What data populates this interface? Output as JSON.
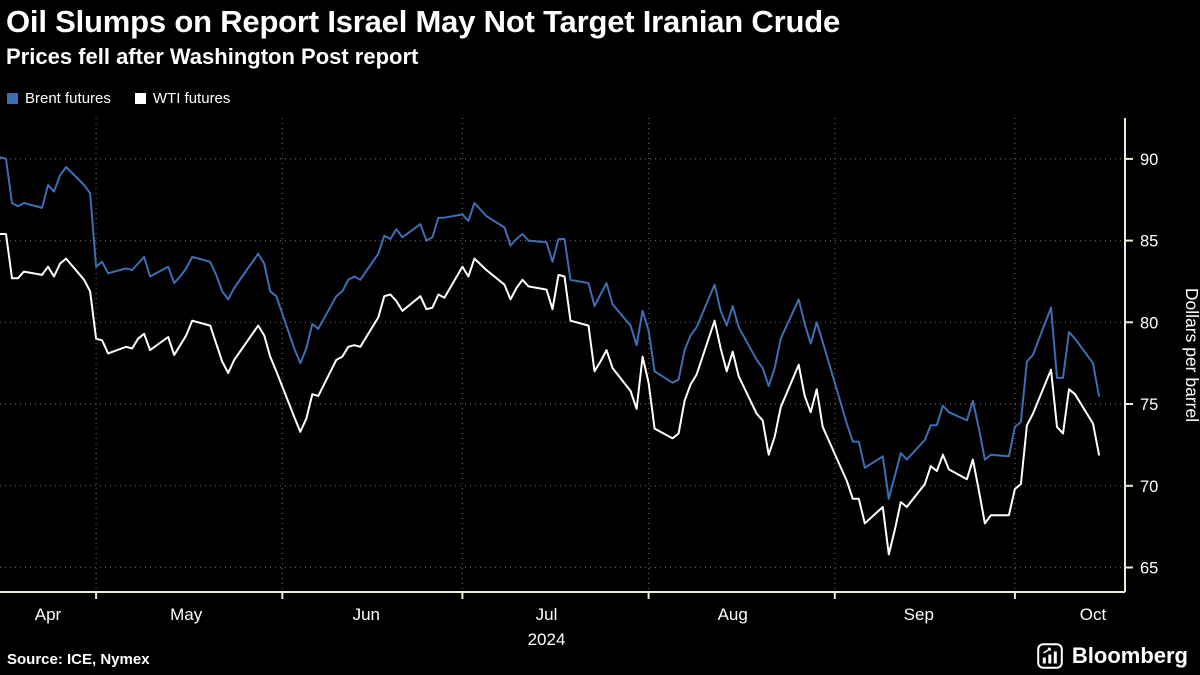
{
  "header": {
    "title": "Oil Slumps on Report Israel May Not Target Iranian Crude",
    "subtitle": "Prices fell after Washington Post report"
  },
  "legend": [
    {
      "label": "Brent futures",
      "color": "#3d6db4"
    },
    {
      "label": "WTI futures",
      "color": "#ffffff"
    }
  ],
  "footer": {
    "source": "Source: ICE, Nymex",
    "brand": "Bloomberg"
  },
  "colors": {
    "background": "#000000",
    "axis": "#f0ead6",
    "grid": "#5f5f5f",
    "tick_text": "#ffffff",
    "brent": "#3d6db4",
    "wti": "#ffffff"
  },
  "chart_data": {
    "type": "line",
    "title": "Oil Slumps on Report Israel May Not Target Iranian Crude",
    "subtitle": "Prices fell after Washington Post report",
    "ylabel": "Dollars per barrel",
    "ylim": [
      63.5,
      92.5
    ],
    "yticks": [
      65,
      70,
      75,
      80,
      85,
      90
    ],
    "grid": "dotted",
    "legend_position": "top-left",
    "x_axis": {
      "start": "2024-04-15",
      "end": "2024-10-16",
      "month_starts": [
        "2024-05-01",
        "2024-06-01",
        "2024-07-01",
        "2024-08-01",
        "2024-09-01",
        "2024-10-01"
      ],
      "month_labels": [
        "Apr",
        "May",
        "Jun",
        "Jul",
        "Aug",
        "Sep",
        "Oct"
      ],
      "label_dates": [
        "2024-04-23",
        "2024-05-16",
        "2024-06-15",
        "2024-07-15",
        "2024-08-15",
        "2024-09-15",
        "2024-10-14"
      ],
      "year_label": "2024",
      "year_label_date": "2024-07-15"
    },
    "dates": [
      "2024-04-15",
      "2024-04-16",
      "2024-04-17",
      "2024-04-18",
      "2024-04-19",
      "2024-04-22",
      "2024-04-23",
      "2024-04-24",
      "2024-04-25",
      "2024-04-26",
      "2024-04-29",
      "2024-04-30",
      "2024-05-01",
      "2024-05-02",
      "2024-05-03",
      "2024-05-06",
      "2024-05-07",
      "2024-05-08",
      "2024-05-09",
      "2024-05-10",
      "2024-05-13",
      "2024-05-14",
      "2024-05-15",
      "2024-05-16",
      "2024-05-17",
      "2024-05-20",
      "2024-05-21",
      "2024-05-22",
      "2024-05-23",
      "2024-05-24",
      "2024-05-28",
      "2024-05-29",
      "2024-05-30",
      "2024-05-31",
      "2024-06-03",
      "2024-06-04",
      "2024-06-05",
      "2024-06-06",
      "2024-06-07",
      "2024-06-10",
      "2024-06-11",
      "2024-06-12",
      "2024-06-13",
      "2024-06-14",
      "2024-06-17",
      "2024-06-18",
      "2024-06-19",
      "2024-06-20",
      "2024-06-21",
      "2024-06-24",
      "2024-06-25",
      "2024-06-26",
      "2024-06-27",
      "2024-06-28",
      "2024-07-01",
      "2024-07-02",
      "2024-07-03",
      "2024-07-05",
      "2024-07-08",
      "2024-07-09",
      "2024-07-10",
      "2024-07-11",
      "2024-07-12",
      "2024-07-15",
      "2024-07-16",
      "2024-07-17",
      "2024-07-18",
      "2024-07-19",
      "2024-07-22",
      "2024-07-23",
      "2024-07-24",
      "2024-07-25",
      "2024-07-26",
      "2024-07-29",
      "2024-07-30",
      "2024-07-31",
      "2024-08-01",
      "2024-08-02",
      "2024-08-05",
      "2024-08-06",
      "2024-08-07",
      "2024-08-08",
      "2024-08-09",
      "2024-08-12",
      "2024-08-13",
      "2024-08-14",
      "2024-08-15",
      "2024-08-16",
      "2024-08-19",
      "2024-08-20",
      "2024-08-21",
      "2024-08-22",
      "2024-08-23",
      "2024-08-26",
      "2024-08-27",
      "2024-08-28",
      "2024-08-29",
      "2024-08-30",
      "2024-09-03",
      "2024-09-04",
      "2024-09-05",
      "2024-09-06",
      "2024-09-09",
      "2024-09-10",
      "2024-09-11",
      "2024-09-12",
      "2024-09-13",
      "2024-09-16",
      "2024-09-17",
      "2024-09-18",
      "2024-09-19",
      "2024-09-20",
      "2024-09-23",
      "2024-09-24",
      "2024-09-25",
      "2024-09-26",
      "2024-09-27",
      "2024-09-30",
      "2024-10-01",
      "2024-10-02",
      "2024-10-03",
      "2024-10-04",
      "2024-10-07",
      "2024-10-08",
      "2024-10-09",
      "2024-10-10",
      "2024-10-11",
      "2024-10-14",
      "2024-10-15"
    ],
    "series": [
      {
        "name": "Brent futures",
        "color": "#3d6db4",
        "values": [
          90.1,
          90.0,
          87.3,
          87.1,
          87.3,
          87.0,
          88.4,
          88.0,
          89.0,
          89.5,
          88.4,
          87.9,
          83.4,
          83.7,
          83.0,
          83.3,
          83.2,
          83.6,
          84.0,
          82.8,
          83.4,
          82.4,
          82.8,
          83.3,
          84.0,
          83.7,
          82.9,
          81.9,
          81.4,
          82.1,
          84.2,
          83.6,
          81.9,
          81.6,
          78.4,
          77.5,
          78.4,
          79.9,
          79.6,
          81.6,
          81.9,
          82.6,
          82.8,
          82.6,
          84.2,
          85.3,
          85.1,
          85.7,
          85.2,
          86.0,
          85.0,
          85.2,
          86.4,
          86.4,
          86.6,
          86.2,
          87.3,
          86.5,
          85.8,
          84.7,
          85.1,
          85.4,
          85.0,
          84.9,
          83.7,
          85.1,
          85.1,
          82.6,
          82.4,
          81.0,
          81.7,
          82.4,
          81.1,
          79.8,
          78.6,
          80.7,
          79.5,
          77.0,
          76.3,
          76.5,
          78.3,
          79.2,
          79.7,
          82.3,
          80.7,
          79.8,
          81.0,
          79.7,
          77.7,
          77.2,
          76.1,
          77.2,
          79.0,
          81.4,
          79.9,
          78.7,
          80.0,
          78.8,
          73.8,
          72.7,
          72.7,
          71.1,
          71.8,
          69.2,
          70.6,
          72.0,
          71.6,
          72.8,
          73.7,
          73.7,
          74.9,
          74.5,
          74.0,
          75.2,
          73.5,
          71.6,
          71.9,
          71.8,
          73.6,
          73.9,
          77.6,
          78.0,
          80.9,
          76.6,
          76.6,
          79.4,
          79.0,
          77.5,
          75.5
        ]
      },
      {
        "name": "WTI futures",
        "color": "#ffffff",
        "values": [
          85.4,
          85.4,
          82.7,
          82.7,
          83.1,
          82.9,
          83.4,
          82.8,
          83.6,
          83.9,
          82.6,
          81.9,
          79.0,
          78.9,
          78.1,
          78.5,
          78.4,
          79.0,
          79.3,
          78.3,
          79.1,
          78.0,
          78.6,
          79.2,
          80.1,
          79.8,
          78.7,
          77.6,
          76.9,
          77.7,
          79.8,
          79.2,
          77.9,
          77.0,
          74.2,
          73.3,
          74.1,
          75.6,
          75.5,
          77.7,
          77.9,
          78.5,
          78.6,
          78.5,
          80.3,
          81.6,
          81.7,
          81.3,
          80.7,
          81.6,
          80.8,
          80.9,
          81.7,
          81.5,
          83.4,
          82.8,
          83.9,
          83.2,
          82.3,
          81.4,
          82.1,
          82.6,
          82.2,
          82.0,
          80.8,
          82.9,
          82.8,
          80.1,
          79.8,
          77.0,
          77.6,
          78.3,
          77.2,
          75.8,
          74.7,
          77.9,
          76.3,
          73.5,
          72.9,
          73.2,
          75.2,
          76.2,
          76.8,
          80.1,
          78.4,
          77.0,
          78.2,
          76.7,
          74.4,
          74.0,
          71.9,
          73.0,
          74.8,
          77.4,
          75.5,
          74.5,
          75.9,
          73.6,
          70.3,
          69.2,
          69.2,
          67.7,
          68.7,
          65.8,
          67.3,
          69.0,
          68.7,
          70.1,
          71.2,
          70.9,
          71.9,
          71.0,
          70.4,
          71.6,
          69.7,
          67.7,
          68.2,
          68.2,
          69.8,
          70.1,
          73.7,
          74.4,
          77.1,
          73.6,
          73.2,
          75.9,
          75.6,
          73.8,
          71.9
        ]
      }
    ]
  }
}
